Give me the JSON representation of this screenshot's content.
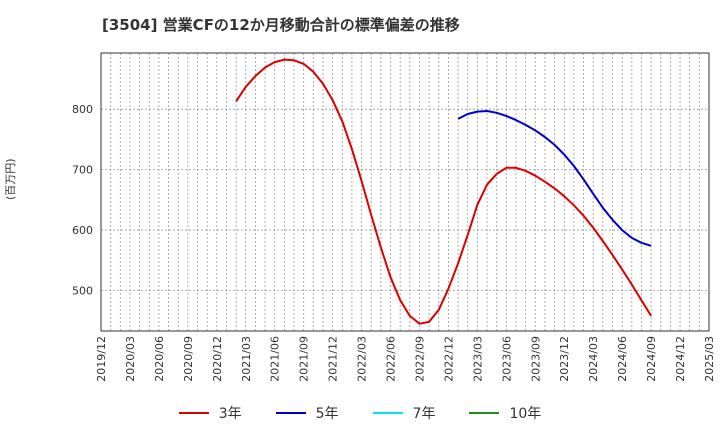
{
  "chart_data": {
    "type": "line",
    "title": "[3504]  営業CFの12か月移動合計の標準偏差の推移",
    "ylabel": "(百万円)",
    "xlabel": "",
    "ylim": [
      433,
      893
    ],
    "yticks": [
      500,
      600,
      700,
      800
    ],
    "x_ticks": [
      "2019/12",
      "2020/03",
      "2020/06",
      "2020/09",
      "2020/12",
      "2021/03",
      "2021/06",
      "2021/09",
      "2021/12",
      "2022/03",
      "2022/06",
      "2022/09",
      "2022/12",
      "2023/03",
      "2023/06",
      "2023/09",
      "2023/12",
      "2024/03",
      "2024/06",
      "2024/09",
      "2024/12",
      "2025/03"
    ],
    "x_range": [
      "2019/12",
      "2025/03"
    ],
    "grid": true,
    "legend_position": "bottom",
    "series": [
      {
        "name": "3年",
        "color": "#dd0000",
        "x": [
          "2021/02",
          "2021/03",
          "2021/04",
          "2021/05",
          "2021/06",
          "2021/07",
          "2021/08",
          "2021/09",
          "2021/10",
          "2021/11",
          "2021/12",
          "2022/01",
          "2022/02",
          "2022/03",
          "2022/04",
          "2022/05",
          "2022/06",
          "2022/07",
          "2022/08",
          "2022/09",
          "2022/10",
          "2022/11",
          "2022/12",
          "2023/01",
          "2023/02",
          "2023/03",
          "2023/04",
          "2023/05",
          "2023/06",
          "2023/07",
          "2023/08",
          "2023/09",
          "2023/10",
          "2023/11",
          "2023/12",
          "2024/01",
          "2024/02",
          "2024/03",
          "2024/04",
          "2024/05",
          "2024/06",
          "2024/07",
          "2024/08",
          "2024/09"
        ],
        "y": [
          813,
          837,
          855,
          869,
          878,
          882,
          881,
          875,
          862,
          842,
          815,
          780,
          734,
          681,
          625,
          571,
          522,
          484,
          458,
          445,
          448,
          468,
          503,
          545,
          592,
          642,
          675,
          693,
          703,
          703,
          698,
          690,
          680,
          669,
          656,
          641,
          624,
          604,
          582,
          559,
          535,
          510,
          484,
          458
        ]
      },
      {
        "name": "5年",
        "color": "#0000cc",
        "x": [
          "2023/01",
          "2023/02",
          "2023/03",
          "2023/04",
          "2023/05",
          "2023/06",
          "2023/07",
          "2023/08",
          "2023/09",
          "2023/10",
          "2023/11",
          "2023/12",
          "2024/01",
          "2024/02",
          "2024/03",
          "2024/04",
          "2024/05",
          "2024/06",
          "2024/07",
          "2024/08",
          "2024/09"
        ],
        "y": [
          784,
          792,
          796,
          797,
          794,
          789,
          782,
          774,
          765,
          754,
          741,
          725,
          706,
          684,
          660,
          637,
          617,
          600,
          587,
          579,
          574
        ]
      },
      {
        "name": "7年",
        "color": "#00e5ee",
        "x": [],
        "y": []
      },
      {
        "name": "10年",
        "color": "#228b22",
        "x": [],
        "y": []
      }
    ]
  }
}
